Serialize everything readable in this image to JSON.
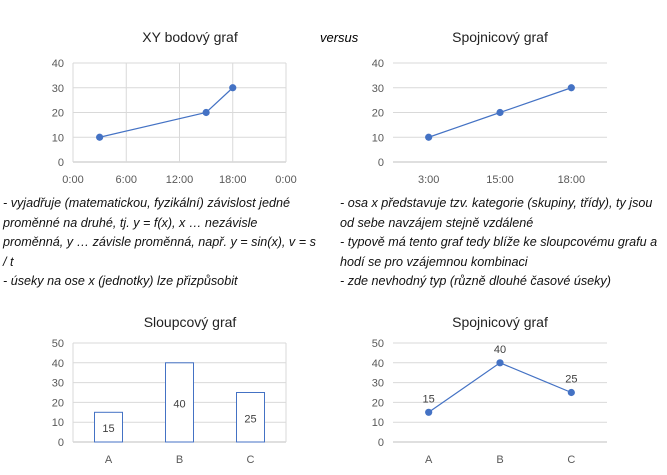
{
  "versus": "versus",
  "notes_left": [
    "- vyjadřuje (matematickou, fyzikální) závislost jedné proměnné na druhé, tj. y = f(x), x … nezávisle proměnná, y … závisle proměnná, např. y = sin(x), v = s / t",
    "- úseky na ose x (jednotky) lze přizpůsobit"
  ],
  "notes_right": [
    "- osa x představuje tzv. kategorie (skupiny, třídy), ty jsou od sebe navzájem stejně vzdálené",
    "- typově má tento graf tedy blíže ke sloupcovému grafu a hodí se pro vzájemnou kombinaci",
    "- zde nevhodný typ (různě dlouhé časové úseky)"
  ],
  "colors": {
    "series": "#4472C4",
    "grid": "#d9d9d9",
    "axis": "#bfbfbf",
    "text": "#595959"
  },
  "chart_data": [
    {
      "type": "scatter",
      "title": "XY bodový graf",
      "x_unit": "hours",
      "x": [
        3,
        15,
        18
      ],
      "y": [
        10,
        20,
        30
      ],
      "xlim": [
        0,
        24
      ],
      "xticks": [
        0,
        6,
        12,
        18,
        24
      ],
      "xtick_labels": [
        "0:00",
        "6:00",
        "12:00",
        "18:00",
        "0:00"
      ],
      "ylim": [
        0,
        40
      ],
      "yticks": [
        0,
        10,
        20,
        30,
        40
      ],
      "grid": "both",
      "lines": true
    },
    {
      "type": "line",
      "title": "Spojnicový graf",
      "categories": [
        "3:00",
        "15:00",
        "18:00"
      ],
      "values": [
        10,
        20,
        30
      ],
      "ylim": [
        0,
        40
      ],
      "yticks": [
        0,
        10,
        20,
        30,
        40
      ],
      "grid": "horizontal"
    },
    {
      "type": "bar",
      "title": "Sloupcový graf",
      "categories": [
        "A",
        "B",
        "C"
      ],
      "values": [
        15,
        40,
        25
      ],
      "data_labels": [
        "15",
        "40",
        "25"
      ],
      "ylim": [
        0,
        50
      ],
      "yticks": [
        0,
        10,
        20,
        30,
        40,
        50
      ],
      "grid": "horizontal"
    },
    {
      "type": "line",
      "title": "Spojnicový graf",
      "categories": [
        "A",
        "B",
        "C"
      ],
      "values": [
        15,
        40,
        25
      ],
      "data_labels": [
        "15",
        "40",
        "25"
      ],
      "ylim": [
        0,
        50
      ],
      "yticks": [
        0,
        10,
        20,
        30,
        40,
        50
      ],
      "grid": "horizontal"
    }
  ]
}
